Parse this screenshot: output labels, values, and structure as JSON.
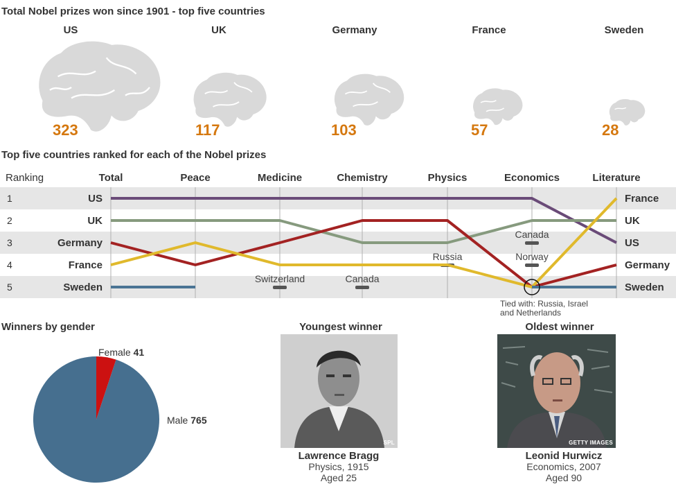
{
  "totals": {
    "title": "Total Nobel prizes won since 1901 - top five countries",
    "countries": [
      {
        "name": "US",
        "value": 323
      },
      {
        "name": "UK",
        "value": 117
      },
      {
        "name": "Germany",
        "value": 103
      },
      {
        "name": "France",
        "value": 57
      },
      {
        "name": "Sweden",
        "value": 28
      }
    ]
  },
  "colors": {
    "accent_number": "#d5780f",
    "US": "#6a4b78",
    "UK": "#869a7e",
    "Germany": "#a32222",
    "France": "#e0b92c",
    "Sweden": "#4a7494",
    "pie_male": "#466f8f",
    "pie_female": "#cc1111",
    "brain": "#d9d9d9"
  },
  "chart_data": [
    {
      "type": "bar",
      "title": "Total Nobel prizes won since 1901 - top five countries",
      "categories": [
        "US",
        "UK",
        "Germany",
        "France",
        "Sweden"
      ],
      "values": [
        323,
        117,
        103,
        57,
        28
      ]
    },
    {
      "type": "line",
      "title": "Top five countries ranked for each of the Nobel prizes",
      "row_header": "Ranking",
      "ranks": [
        "1",
        "2",
        "3",
        "4",
        "5"
      ],
      "left_labels": [
        "US",
        "UK",
        "Germany",
        "France",
        "Sweden"
      ],
      "right_labels": [
        "France",
        "UK",
        "US",
        "Germany",
        "Sweden"
      ],
      "categories": [
        "Total",
        "Peace",
        "Medicine",
        "Chemistry",
        "Physics",
        "Economics",
        "Literature"
      ],
      "series": [
        {
          "name": "US",
          "values": [
            1,
            1,
            1,
            1,
            1,
            1,
            3
          ]
        },
        {
          "name": "UK",
          "values": [
            2,
            2,
            2,
            3,
            3,
            2,
            2
          ]
        },
        {
          "name": "Germany",
          "values": [
            3,
            4,
            3,
            2,
            2,
            5,
            4
          ]
        },
        {
          "name": "France",
          "values": [
            4,
            3,
            4,
            4,
            4,
            5,
            1
          ]
        },
        {
          "name": "Sweden",
          "values": [
            5,
            5,
            null,
            null,
            null,
            5,
            5
          ]
        }
      ],
      "others": [
        {
          "category": "Medicine",
          "rank": 5,
          "name": "Switzerland"
        },
        {
          "category": "Chemistry",
          "rank": 5,
          "name": "Canada"
        },
        {
          "category": "Physics",
          "rank": 4,
          "name": "Russia"
        },
        {
          "category": "Economics",
          "rank": 3,
          "name": "Canada"
        },
        {
          "category": "Economics",
          "rank": 4,
          "name": "Norway"
        }
      ],
      "note_line1": "Tied with: Russia, Israel",
      "note_line2": "and Netherlands"
    },
    {
      "type": "pie",
      "title": "Winners by gender",
      "slices": [
        {
          "name": "Female",
          "value": 41
        },
        {
          "name": "Male",
          "value": 765
        }
      ]
    }
  ],
  "winners": [
    {
      "heading": "Youngest winner",
      "name": "Lawrence Bragg",
      "line1": "Physics, 1915",
      "line2": "Aged 25",
      "credit": "SPL"
    },
    {
      "heading": "Oldest winner",
      "name": "Leonid Hurwicz",
      "line1": "Economics, 2007",
      "line2": "Aged 90",
      "credit": "GETTY IMAGES"
    }
  ]
}
